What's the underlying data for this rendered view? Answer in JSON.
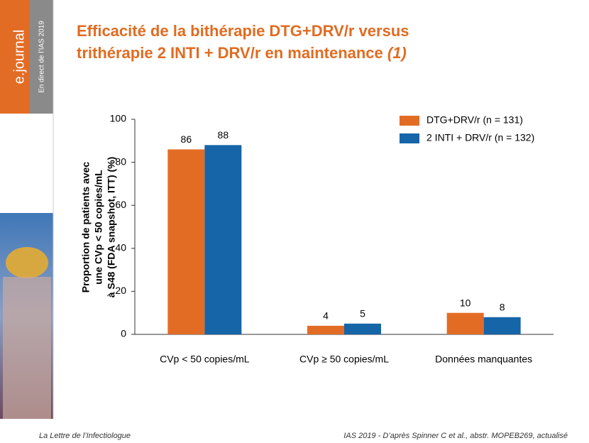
{
  "sidebar": {
    "brand": "e.journal",
    "event": "En direct de l’IAS 2019"
  },
  "chart_data": {
    "type": "bar",
    "title_lines": [
      "Efficacité de la bithérapie DTG+DRV/r versus",
      "trithérapie 2 INTI + DRV/r en maintenance"
    ],
    "title_note": "(1)",
    "y_label_lines": [
      "Proportion de patients avec",
      "une CVp < 50 copies/mL",
      "à S48 (FDA snapshot, ITT) (%)"
    ],
    "categories": [
      "CVp < 50 copies/mL",
      "CVp ≥ 50 copies/mL",
      "Données manquantes"
    ],
    "series": [
      {
        "name": "DTG+DRV/r (n = 131)",
        "color": "#e36c25",
        "values": [
          86,
          4,
          10
        ]
      },
      {
        "name": "2 INTI + DRV/r (n = 132)",
        "color": "#1565a8",
        "values": [
          88,
          5,
          8
        ]
      }
    ],
    "ylim": [
      0,
      100
    ],
    "yticks": [
      0,
      20,
      40,
      60,
      80,
      100
    ],
    "legend": "top-right"
  },
  "footer": {
    "left": "La Lettre de l’Infectiologue",
    "right": "IAS 2019 - D’après Spinner C et al., abstr. MOPEB269, actualisé"
  }
}
